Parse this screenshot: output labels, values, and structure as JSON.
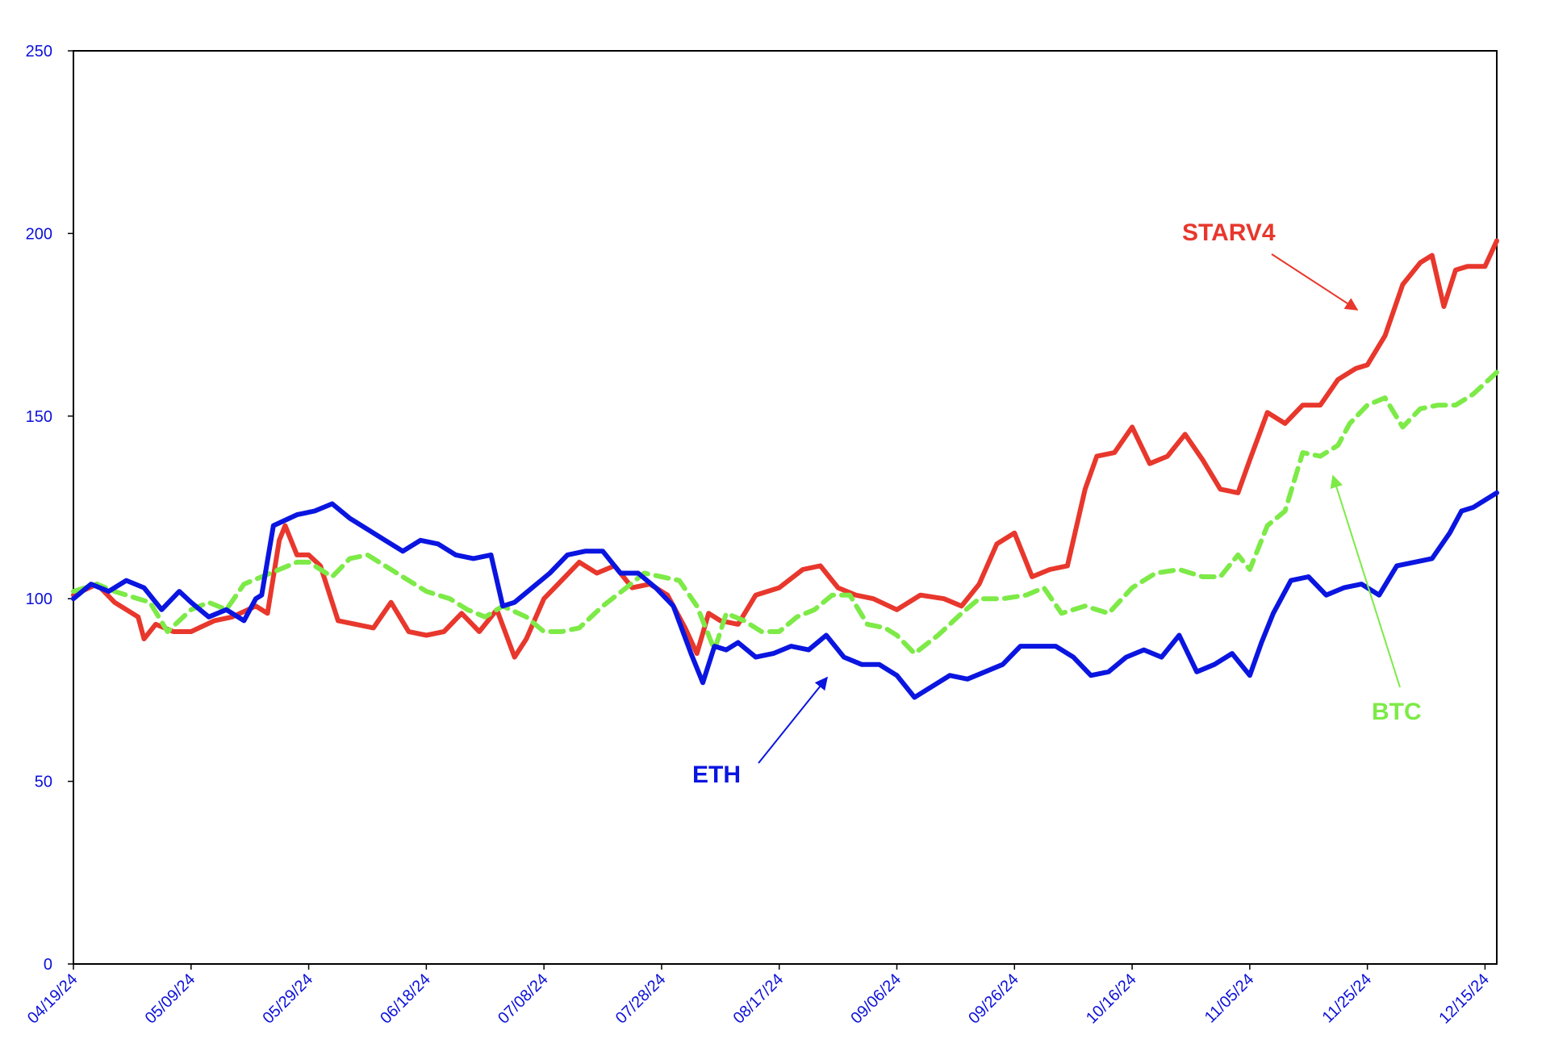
{
  "chart_data": {
    "type": "line",
    "title": "",
    "xlabel": "",
    "ylabel": "",
    "ylim": [
      0,
      250
    ],
    "yticks": [
      0,
      50,
      100,
      150,
      200,
      250
    ],
    "xlim": [
      "04/19/24",
      "12/17/24"
    ],
    "xticks": [
      "04/19/24",
      "05/09/24",
      "05/29/24",
      "06/18/24",
      "07/08/24",
      "07/28/24",
      "08/17/24",
      "09/06/24",
      "09/26/24",
      "10/16/24",
      "11/05/24",
      "11/25/24",
      "12/15/24"
    ],
    "grid": false,
    "legend": "none",
    "colors": {
      "axis": "#000000",
      "ticks": "#0b10d9"
    },
    "series": [
      {
        "name": "STARV4",
        "color": "#e8372c",
        "dash": "solid",
        "x": [
          "04/19/24",
          "04/23/24",
          "04/26/24",
          "04/30/24",
          "05/01/24",
          "05/03/24",
          "05/06/24",
          "05/09/24",
          "05/13/24",
          "05/16/24",
          "05/20/24",
          "05/22/24",
          "05/24/24",
          "05/25/24",
          "05/27/24",
          "05/29/24",
          "05/31/24",
          "06/03/24",
          "06/06/24",
          "06/09/24",
          "06/12/24",
          "06/15/24",
          "06/18/24",
          "06/21/24",
          "06/24/24",
          "06/27/24",
          "06/30/24",
          "07/03/24",
          "07/05/24",
          "07/08/24",
          "07/11/24",
          "07/14/24",
          "07/17/24",
          "07/20/24",
          "07/23/24",
          "07/26/24",
          "07/29/24",
          "08/01/24",
          "08/03/24",
          "08/05/24",
          "08/07/24",
          "08/10/24",
          "08/13/24",
          "08/17/24",
          "08/21/24",
          "08/24/24",
          "08/27/24",
          "08/30/24",
          "09/02/24",
          "09/06/24",
          "09/10/24",
          "09/14/24",
          "09/17/24",
          "09/20/24",
          "09/23/24",
          "09/26/24",
          "09/29/24",
          "10/02/24",
          "10/05/24",
          "10/08/24",
          "10/10/24",
          "10/13/24",
          "10/16/24",
          "10/19/24",
          "10/22/24",
          "10/25/24",
          "10/28/24",
          "10/31/24",
          "11/03/24",
          "11/05/24",
          "11/08/24",
          "11/11/24",
          "11/14/24",
          "11/17/24",
          "11/20/24",
          "11/23/24",
          "11/25/24",
          "11/28/24",
          "12/01/24",
          "12/04/24",
          "12/06/24",
          "12/08/24",
          "12/10/24",
          "12/12/24",
          "12/15/24",
          "12/17/24"
        ],
        "values": [
          101,
          104,
          99,
          95,
          89,
          93,
          91,
          91,
          94,
          95,
          98,
          96,
          116,
          120,
          112,
          112,
          109,
          94,
          93,
          92,
          99,
          91,
          90,
          91,
          96,
          91,
          97,
          84,
          89,
          100,
          105,
          110,
          107,
          109,
          103,
          104,
          101,
          92,
          85,
          96,
          94,
          93,
          101,
          103,
          108,
          109,
          103,
          101,
          100,
          97,
          101,
          100,
          98,
          104,
          115,
          118,
          106,
          108,
          109,
          130,
          139,
          140,
          147,
          137,
          139,
          145,
          138,
          130,
          129,
          138,
          151,
          148,
          153,
          153,
          160,
          163,
          164,
          172,
          186,
          192,
          194,
          180,
          190,
          191,
          191,
          198
        ]
      },
      {
        "name": "BTC",
        "color": "#7dea47",
        "dash": "dashed",
        "x": [
          "04/19/24",
          "04/23/24",
          "04/26/24",
          "04/30/24",
          "05/02/24",
          "05/05/24",
          "05/09/24",
          "05/12/24",
          "05/15/24",
          "05/18/24",
          "05/21/24",
          "05/24/24",
          "05/27/24",
          "05/29/24",
          "06/02/24",
          "06/05/24",
          "06/08/24",
          "06/12/24",
          "06/15/24",
          "06/18/24",
          "06/22/24",
          "06/25/24",
          "06/28/24",
          "07/01/24",
          "07/05/24",
          "07/08/24",
          "07/11/24",
          "07/14/24",
          "07/18/24",
          "07/22/24",
          "07/25/24",
          "07/28/24",
          "07/31/24",
          "08/03/24",
          "08/06/24",
          "08/08/24",
          "08/11/24",
          "08/14/24",
          "08/17/24",
          "08/20/24",
          "08/23/24",
          "08/26/24",
          "08/29/24",
          "09/01/24",
          "09/04/24",
          "09/06/24",
          "09/09/24",
          "09/13/24",
          "09/17/24",
          "09/20/24",
          "09/24/24",
          "09/28/24",
          "10/01/24",
          "10/04/24",
          "10/08/24",
          "10/12/24",
          "10/16/24",
          "10/20/24",
          "10/24/24",
          "10/28/24",
          "10/31/24",
          "11/03/24",
          "11/05/24",
          "11/08/24",
          "11/11/24",
          "11/14/24",
          "11/17/24",
          "11/20/24",
          "11/22/24",
          "11/25/24",
          "11/28/24",
          "12/01/24",
          "12/04/24",
          "12/07/24",
          "12/10/24",
          "12/13/24",
          "12/17/24"
        ],
        "values": [
          102,
          104,
          102,
          100,
          99,
          91,
          97,
          99,
          97,
          104,
          106,
          108,
          110,
          110,
          106,
          111,
          112,
          108,
          105,
          102,
          100,
          97,
          95,
          98,
          95,
          91,
          91,
          92,
          98,
          103,
          107,
          106,
          105,
          98,
          86,
          96,
          94,
          91,
          91,
          95,
          97,
          101,
          101,
          93,
          92,
          90,
          85,
          90,
          96,
          100,
          100,
          101,
          103,
          96,
          98,
          96,
          103,
          107,
          108,
          106,
          106,
          112,
          108,
          120,
          124,
          140,
          139,
          142,
          148,
          153,
          155,
          147,
          152,
          153,
          153,
          156,
          162
        ]
      },
      {
        "name": "ETH",
        "color": "#0a15e0",
        "dash": "solid",
        "x": [
          "04/19/24",
          "04/22/24",
          "04/25/24",
          "04/28/24",
          "05/01/24",
          "05/04/24",
          "05/07/24",
          "05/09/24",
          "05/12/24",
          "05/15/24",
          "05/18/24",
          "05/20/24",
          "05/21/24",
          "05/23/24",
          "05/27/24",
          "05/30/24",
          "06/02/24",
          "06/05/24",
          "06/08/24",
          "06/11/24",
          "06/14/24",
          "06/17/24",
          "06/20/24",
          "06/23/24",
          "06/26/24",
          "06/29/24",
          "07/01/24",
          "07/03/24",
          "07/06/24",
          "07/09/24",
          "07/12/24",
          "07/15/24",
          "07/18/24",
          "07/21/24",
          "07/24/24",
          "07/27/24",
          "07/30/24",
          "08/02/24",
          "08/04/24",
          "08/06/24",
          "08/08/24",
          "08/10/24",
          "08/13/24",
          "08/16/24",
          "08/19/24",
          "08/22/24",
          "08/25/24",
          "08/28/24",
          "08/31/24",
          "09/03/24",
          "09/06/24",
          "09/09/24",
          "09/12/24",
          "09/15/24",
          "09/18/24",
          "09/21/24",
          "09/24/24",
          "09/27/24",
          "09/30/24",
          "10/03/24",
          "10/06/24",
          "10/09/24",
          "10/12/24",
          "10/15/24",
          "10/18/24",
          "10/21/24",
          "10/24/24",
          "10/27/24",
          "10/30/24",
          "11/02/24",
          "11/05/24",
          "11/07/24",
          "11/09/24",
          "11/12/24",
          "11/15/24",
          "11/18/24",
          "11/21/24",
          "11/24/24",
          "11/27/24",
          "11/30/24",
          "12/03/24",
          "12/06/24",
          "12/09/24",
          "12/11/24",
          "12/13/24",
          "12/15/24",
          "12/17/24"
        ],
        "values": [
          100,
          104,
          102,
          105,
          103,
          97,
          102,
          99,
          95,
          97,
          94,
          100,
          101,
          120,
          123,
          124,
          126,
          122,
          119,
          116,
          113,
          116,
          115,
          112,
          111,
          112,
          98,
          99,
          103,
          107,
          112,
          113,
          113,
          107,
          107,
          103,
          98,
          85,
          77,
          87,
          86,
          88,
          84,
          85,
          87,
          86,
          90,
          84,
          82,
          82,
          79,
          73,
          76,
          79,
          78,
          80,
          82,
          87,
          87,
          87,
          84,
          79,
          80,
          84,
          86,
          84,
          90,
          80,
          82,
          85,
          79,
          88,
          96,
          105,
          106,
          101,
          103,
          104,
          101,
          109,
          110,
          111,
          118,
          124,
          125,
          127,
          129
        ]
      }
    ],
    "annotations": [
      {
        "text": "STARV4",
        "color": "#e8372c"
      },
      {
        "text": "BTC",
        "color": "#7dea47"
      },
      {
        "text": "ETH",
        "color": "#0a15e0"
      }
    ]
  }
}
